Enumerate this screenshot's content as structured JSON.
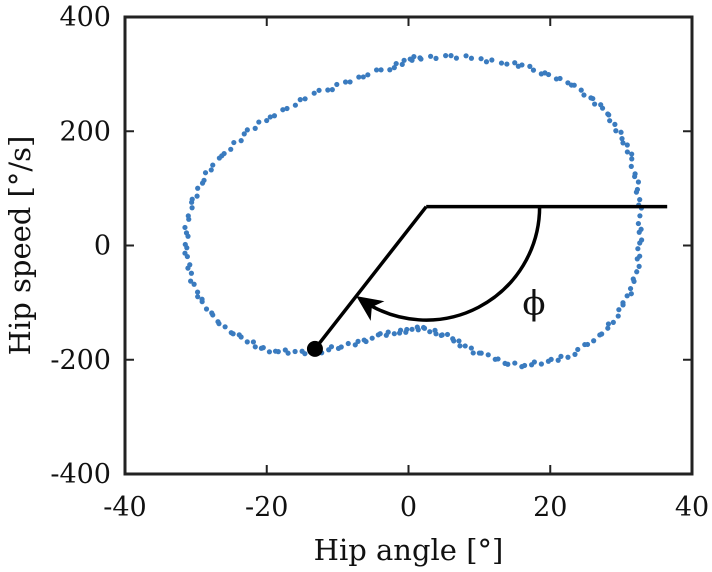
{
  "chart_data": {
    "type": "scatter",
    "title": "",
    "xlabel": "Hip angle [°]",
    "ylabel": "Hip speed [°/s]",
    "xlim": [
      -40,
      40
    ],
    "ylim": [
      -400,
      400
    ],
    "xticks": [
      -40,
      -20,
      0,
      20,
      40
    ],
    "yticks": [
      -400,
      -200,
      0,
      200,
      400
    ],
    "xtick_labels": [
      "-40",
      "-20",
      "0",
      "20",
      "40"
    ],
    "ytick_labels": [
      "-400",
      "-200",
      "0",
      "200",
      "400"
    ],
    "grid": false,
    "series": [
      {
        "color": "#3a7bbf",
        "points": [
          [
            2,
            330
          ],
          [
            6,
            330
          ],
          [
            10,
            327
          ],
          [
            14,
            320
          ],
          [
            17,
            310
          ],
          [
            20,
            298
          ],
          [
            23,
            282
          ],
          [
            25.5,
            262
          ],
          [
            27.5,
            238
          ],
          [
            29,
            212
          ],
          [
            30.5,
            182
          ],
          [
            31.5,
            148
          ],
          [
            32.2,
            110
          ],
          [
            32.6,
            72
          ],
          [
            32.7,
            32
          ],
          [
            32.6,
            -8
          ],
          [
            32.2,
            -46
          ],
          [
            31.2,
            -82
          ],
          [
            29.8,
            -116
          ],
          [
            28,
            -146
          ],
          [
            25.5,
            -172
          ],
          [
            22.5,
            -192
          ],
          [
            19.5,
            -205
          ],
          [
            16.5,
            -210
          ],
          [
            13.5,
            -204
          ],
          [
            10.5,
            -192
          ],
          [
            8,
            -177
          ],
          [
            6,
            -162
          ],
          [
            4,
            -151
          ],
          [
            2,
            -146
          ],
          [
            0,
            -147
          ],
          [
            -2,
            -152
          ],
          [
            -4.5,
            -160
          ],
          [
            -7,
            -169
          ],
          [
            -10,
            -179
          ],
          [
            -13,
            -186
          ],
          [
            -16,
            -188
          ],
          [
            -19,
            -185
          ],
          [
            -21.5,
            -175
          ],
          [
            -24,
            -160
          ],
          [
            -26.5,
            -138
          ],
          [
            -28.5,
            -110
          ],
          [
            -30,
            -78
          ],
          [
            -31,
            -42
          ],
          [
            -31.4,
            -4
          ],
          [
            -31.3,
            34
          ],
          [
            -30.6,
            72
          ],
          [
            -29.3,
            108
          ],
          [
            -27.5,
            142
          ],
          [
            -25.2,
            172
          ],
          [
            -22.5,
            200
          ],
          [
            -19.5,
            225
          ],
          [
            -16.2,
            248
          ],
          [
            -12.5,
            268
          ],
          [
            -9,
            285
          ],
          [
            -5.5,
            300
          ],
          [
            -2,
            315
          ],
          [
            0,
            324
          ]
        ]
      }
    ],
    "overlay": {
      "origin": [
        2.5,
        68
      ],
      "reference_line_end": [
        36.5,
        68
      ],
      "phase_line_end": [
        -13.2,
        -181
      ],
      "marker": [
        -13.2,
        -181
      ],
      "arc_radius_x": 16,
      "arc_start_angle_deg": 0,
      "arc_end_angle_deg": -125,
      "angle_label": "ϕ",
      "line_color": "#000000"
    }
  }
}
